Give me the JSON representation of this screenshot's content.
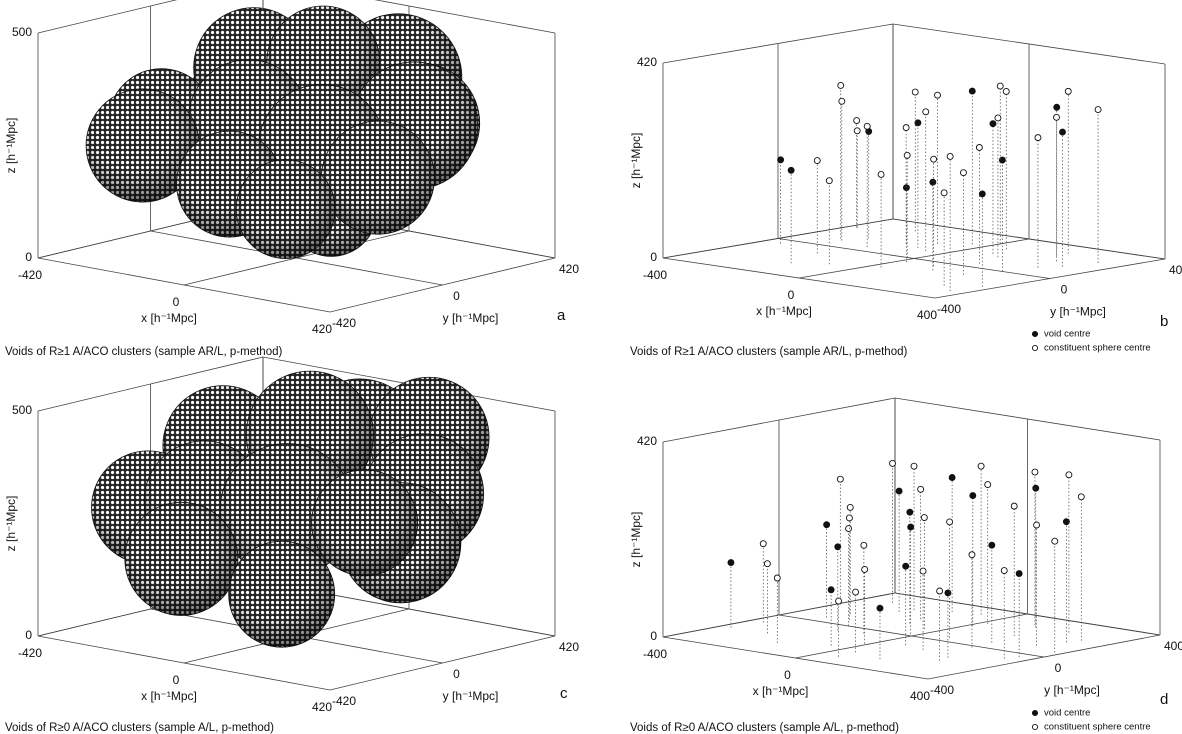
{
  "chart_data": [
    {
      "type": "sphere3d",
      "caption": "Voids of R≥1 A/ACO clusters (sample AR/L, p-method)",
      "panel_label": "a",
      "xlabel": "x [h⁻¹Mpc]",
      "ylabel": "y [h⁻¹Mpc]",
      "zlabel": "z [h⁻¹Mpc]",
      "xlim": [
        -420,
        420
      ],
      "ylim": [
        -420,
        420
      ],
      "zlim": [
        0,
        500
      ],
      "xticks": [
        -420,
        0,
        420
      ],
      "yticks": [
        -420,
        0,
        420
      ],
      "zticks": [
        0,
        500
      ],
      "grid": true,
      "x": [
        -300,
        -100,
        -200,
        -350,
        100,
        0,
        -100,
        200,
        -250,
        100,
        300,
        150,
        0,
        350,
        200
      ],
      "y": [
        200,
        300,
        100,
        -50,
        250,
        100,
        -50,
        200,
        -250,
        0,
        50,
        -100,
        -250,
        -150,
        -300
      ],
      "z": [
        280,
        330,
        380,
        260,
        380,
        420,
        300,
        300,
        250,
        120,
        330,
        280,
        200,
        250,
        180
      ],
      "r": [
        160,
        170,
        170,
        150,
        180,
        160,
        170,
        170,
        160,
        130,
        180,
        180,
        150,
        160,
        140
      ]
    },
    {
      "type": "scatter3d",
      "caption": "Voids of R≥1 A/ACO clusters (sample AR/L, p-method)",
      "panel_label": "b",
      "xlabel": "x [h⁻¹Mpc]",
      "ylabel": "y [h⁻¹Mpc]",
      "zlabel": "z [h⁻¹Mpc]",
      "xlim": [
        -400,
        400
      ],
      "ylim": [
        -400,
        400
      ],
      "zlim": [
        0,
        420
      ],
      "xticks": [
        -400,
        0,
        400
      ],
      "yticks": [
        -400,
        0,
        400
      ],
      "zticks": [
        0,
        420
      ],
      "grid": true,
      "legend": "lower right",
      "series": [
        {
          "name": "void centre",
          "marker": "filled",
          "x": [
            -350,
            -260,
            -150,
            -90,
            -40,
            20,
            80,
            140,
            200,
            260,
            310,
            370
          ],
          "y": [
            -50,
            150,
            -250,
            120,
            250,
            -50,
            180,
            -100,
            260,
            0,
            150,
            -200
          ],
          "z": [
            180,
            230,
            200,
            270,
            330,
            160,
            280,
            190,
            320,
            240,
            290,
            200
          ]
        },
        {
          "name": "constituent sphere centre",
          "marker": "open",
          "x": [
            -380,
            -370,
            -300,
            -280,
            -250,
            -200,
            -180,
            -150,
            -100,
            -80,
            -50,
            -20,
            0,
            30,
            60,
            100,
            120,
            150,
            200,
            230,
            250,
            280,
            300,
            330,
            360
          ],
          "y": [
            250,
            240,
            100,
            80,
            300,
            -100,
            50,
            150,
            200,
            -200,
            100,
            0,
            300,
            -150,
            250,
            -50,
            150,
            50,
            300,
            -100,
            200,
            100,
            -250,
            250,
            -300
          ],
          "z": [
            230,
            210,
            330,
            300,
            300,
            200,
            260,
            250,
            320,
            180,
            300,
            220,
            340,
            200,
            340,
            230,
            300,
            250,
            350,
            220,
            310,
            280,
            200,
            330,
            290
          ]
        }
      ]
    },
    {
      "type": "sphere3d",
      "caption": "Voids of R≥0 A/ACO clusters (sample A/L, p-method)",
      "panel_label": "c",
      "xlabel": "x [h⁻¹Mpc]",
      "ylabel": "y [h⁻¹Mpc]",
      "zlabel": "z [h⁻¹Mpc]",
      "xlim": [
        -420,
        420
      ],
      "ylim": [
        -420,
        420
      ],
      "zlim": [
        0,
        500
      ],
      "xticks": [
        -420,
        0,
        420
      ],
      "yticks": [
        -420,
        0,
        420
      ],
      "zticks": [
        0,
        500
      ],
      "grid": true,
      "x": [
        -300,
        -50,
        -250,
        -350,
        150,
        0,
        -150,
        250,
        50,
        -100,
        300,
        150,
        350
      ],
      "y": [
        250,
        300,
        50,
        -100,
        300,
        50,
        -150,
        150,
        -100,
        -300,
        0,
        -250,
        -200
      ],
      "z": [
        300,
        380,
        380,
        250,
        420,
        440,
        300,
        330,
        300,
        200,
        250,
        150,
        330
      ],
      "r": [
        170,
        180,
        170,
        160,
        170,
        180,
        170,
        170,
        190,
        160,
        170,
        150,
        150
      ]
    },
    {
      "type": "scatter3d",
      "caption": "Voids of R≥0 A/ACO clusters (sample A/L, p-method)",
      "panel_label": "d",
      "xlabel": "x [h⁻¹Mpc]",
      "ylabel": "y [h⁻¹Mpc]",
      "zlabel": "z [h⁻¹Mpc]",
      "xlim": [
        -400,
        400
      ],
      "ylim": [
        -400,
        400
      ],
      "zlim": [
        0,
        420
      ],
      "xticks": [
        -400,
        0,
        400
      ],
      "yticks": [
        -400,
        0,
        400
      ],
      "zticks": [
        0,
        420
      ],
      "grid": true,
      "legend": "lower right",
      "series": [
        {
          "name": "void centre",
          "marker": "filled",
          "x": [
            -370,
            -300,
            -230,
            -170,
            -110,
            -50,
            10,
            70,
            130,
            190,
            250,
            310,
            360,
            -20,
            150,
            -140
          ],
          "y": [
            -200,
            50,
            220,
            -60,
            120,
            -220,
            200,
            -100,
            280,
            60,
            -160,
            180,
            -40,
            20,
            -280,
            300
          ],
          "z": [
            140,
            200,
            260,
            180,
            240,
            120,
            280,
            170,
            300,
            210,
            140,
            260,
            180,
            230,
            110,
            290
          ]
        },
        {
          "name": "constituent sphere centre",
          "marker": "open",
          "x": [
            -390,
            -360,
            -320,
            -290,
            -260,
            -220,
            -190,
            -160,
            -130,
            -100,
            -70,
            -40,
            -10,
            20,
            50,
            80,
            110,
            140,
            170,
            200,
            230,
            260,
            290,
            320,
            350,
            380,
            -240,
            60
          ],
          "y": [
            200,
            -100,
            300,
            120,
            -200,
            260,
            0,
            -280,
            180,
            -50,
            320,
            90,
            -150,
            240,
            -250,
            40,
            300,
            -120,
            160,
            -20,
            280,
            -200,
            100,
            220,
            -80,
            60,
            60,
            -320
          ],
          "z": [
            270,
            170,
            300,
            230,
            150,
            310,
            210,
            140,
            280,
            190,
            320,
            240,
            160,
            300,
            130,
            250,
            330,
            170,
            280,
            200,
            340,
            150,
            260,
            310,
            190,
            240,
            220,
            120
          ]
        }
      ]
    }
  ]
}
